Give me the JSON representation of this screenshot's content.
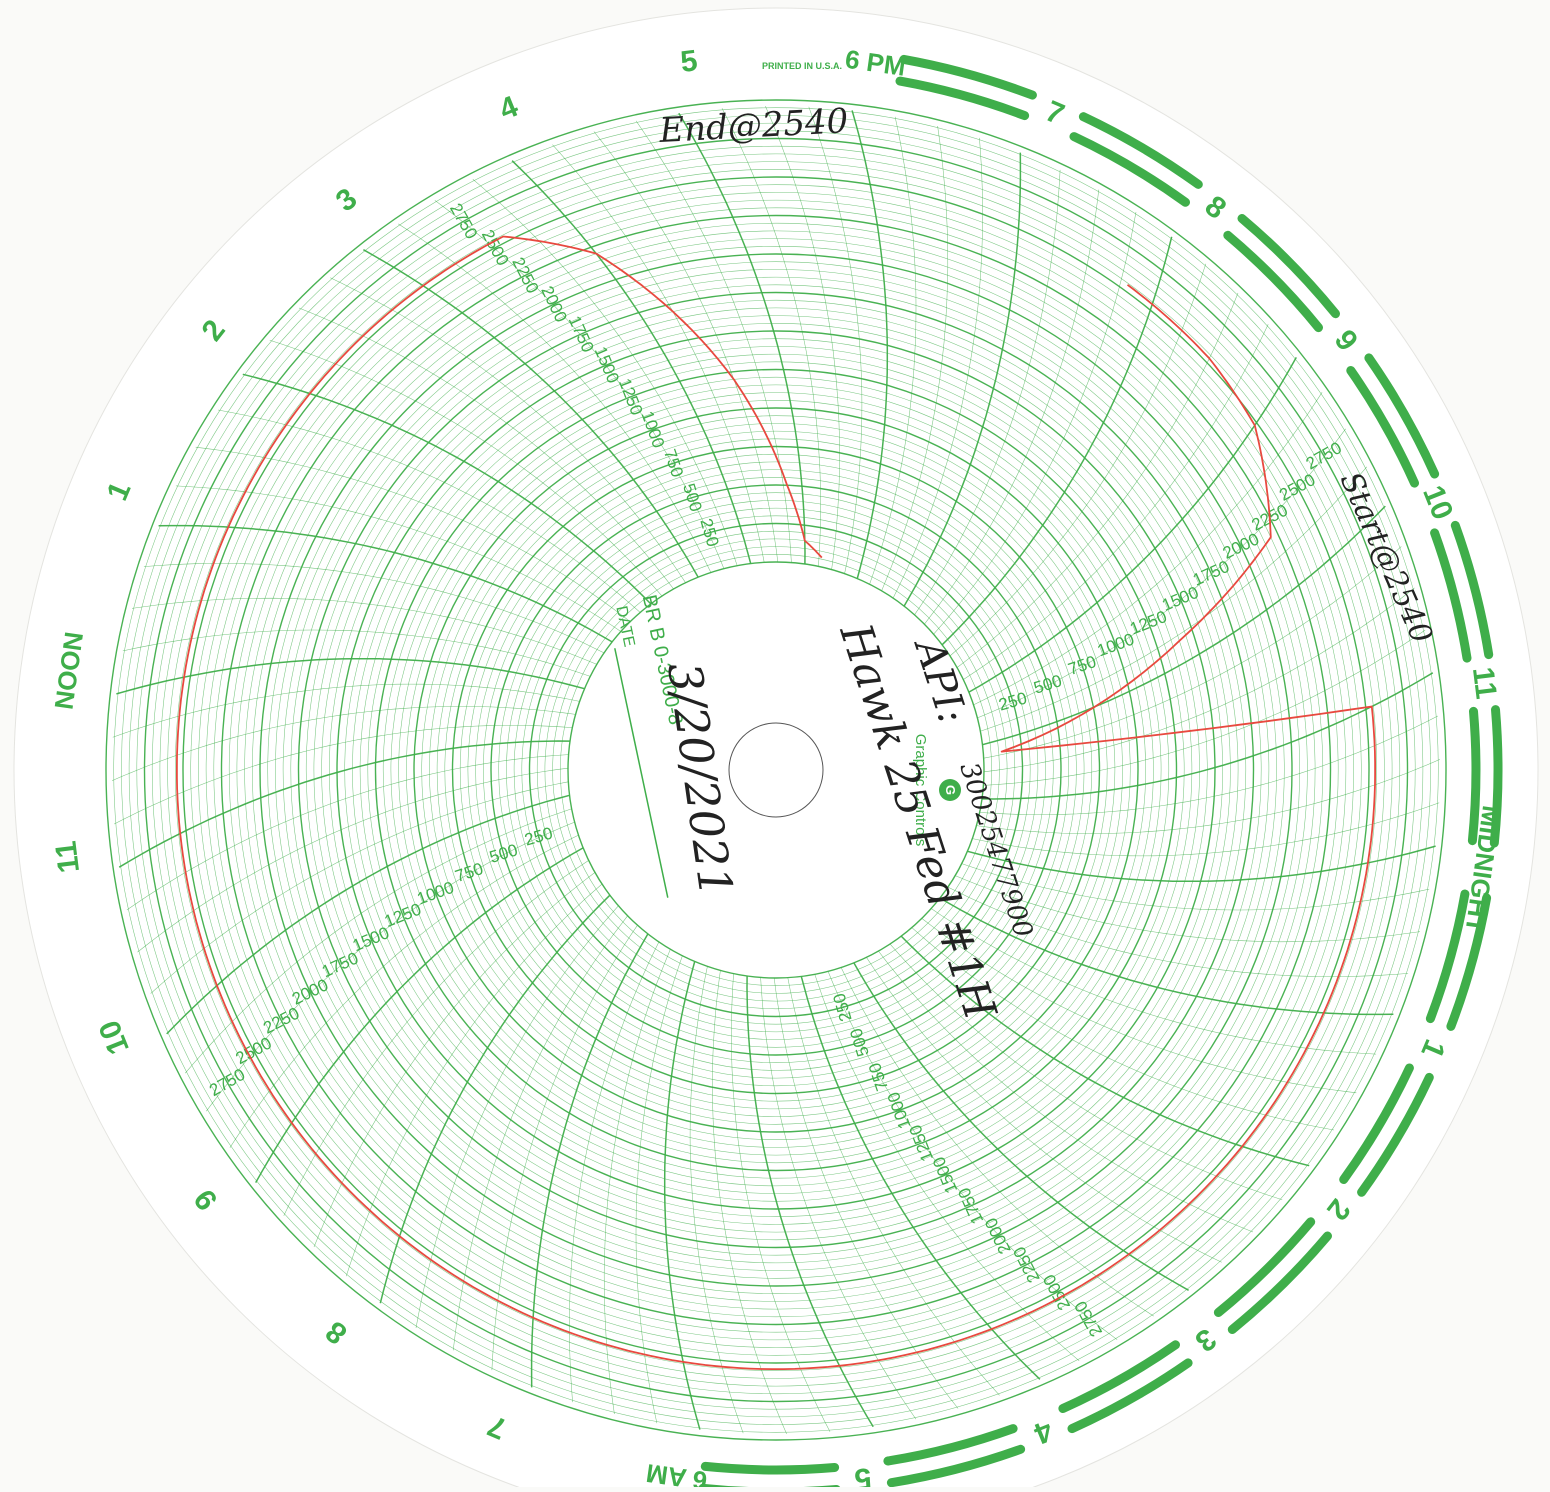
{
  "chart_data": {
    "type": "circular-recorder-chart",
    "colors": {
      "grid": "#3fae4a",
      "trace": "#e8493f",
      "paper": "#ffffff",
      "ink": "#2a2a2a"
    },
    "hour_labels": [
      "6 PM",
      "7",
      "8",
      "9",
      "10",
      "11",
      "MIDNIGHT",
      "1",
      "2",
      "3",
      "4",
      "5",
      "6 AM",
      "7",
      "8",
      "9",
      "10",
      "11",
      "NOON",
      "1",
      "2",
      "3",
      "4",
      "5"
    ],
    "radial_scale": {
      "min": 0,
      "max": 3000,
      "labeled_ticks": [
        250,
        500,
        750,
        1000,
        1250,
        1500,
        1750,
        2000,
        2250,
        2500,
        2750
      ]
    },
    "printed_text": {
      "printed_in": "PRINTED IN U.S.A.",
      "brand": "Graphic Controls",
      "date_label": "DATE",
      "chart_code": "BR B 0-3000-8"
    },
    "handwriting": {
      "end_note": "End@2540",
      "start_note": "Start@2540",
      "date": "3/20/2021",
      "well_name": "Hawk 25 Fed #1H",
      "api_label": "API:",
      "api_number": "30025477900"
    },
    "trace": {
      "time_hours": [
        20.8,
        21.5,
        22.0,
        22.6,
        22.8,
        23.2,
        24.0,
        25.0,
        26.0,
        27.0,
        28.0,
        29.0,
        30.0,
        31.0,
        32.0,
        33.0,
        34.0,
        35.0,
        36.0,
        37.0,
        38.0,
        39.0,
        40.0,
        40.6,
        41.0,
        41.5,
        41.8,
        42.0,
        42.3
      ],
      "pressure": [
        2540,
        2530,
        2480,
        2200,
        1400,
        120,
        2540,
        2540,
        2540,
        2540,
        2540,
        2540,
        2540,
        2540,
        2540,
        2540,
        2540,
        2540,
        2540,
        2540,
        2540,
        2540,
        2540,
        2540,
        2200,
        1200,
        500,
        150,
        60
      ]
    }
  }
}
